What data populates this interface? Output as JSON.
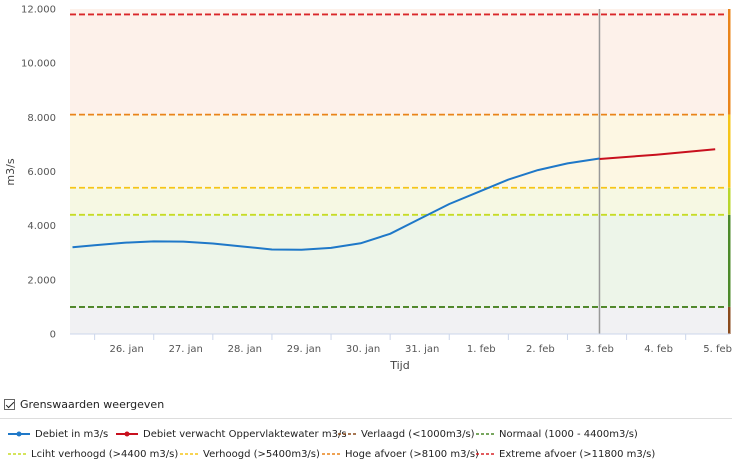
{
  "chart_data": {
    "type": "line",
    "ylabel": "m3/s",
    "xlabel": "Tijd",
    "ylim": [
      0,
      12000
    ],
    "yticks": [
      0,
      2000,
      4000,
      6000,
      8000,
      10000,
      12000
    ],
    "ytick_labels": [
      "0",
      "2.000",
      "4.000",
      "6.000",
      "8.000",
      "10.000",
      "12.000"
    ],
    "xlim": [
      "2025-01-25T14:00",
      "2025-02-05T18:00"
    ],
    "xticks": [
      "2025-01-26",
      "2025-01-27",
      "2025-01-28",
      "2025-01-29",
      "2025-01-30",
      "2025-01-31",
      "2025-02-01",
      "2025-02-02",
      "2025-02-03",
      "2025-02-04",
      "2025-02-05"
    ],
    "xtick_labels": [
      "26. jan",
      "27. jan",
      "28. jan",
      "29. jan",
      "30. jan",
      "31. jan",
      "1. feb",
      "2. feb",
      "3. feb",
      "4. feb",
      "5. feb"
    ],
    "now": "2025-02-03T13:00",
    "series": [
      {
        "name": "Debiet in m3/s",
        "color": "#1f78c8",
        "points": [
          [
            "2025-01-25T15:00",
            3200
          ],
          [
            "2025-01-26T00:00",
            3280
          ],
          [
            "2025-01-26T12:00",
            3370
          ],
          [
            "2025-01-27T00:00",
            3420
          ],
          [
            "2025-01-27T12:00",
            3410
          ],
          [
            "2025-01-28T00:00",
            3340
          ],
          [
            "2025-01-28T12:00",
            3230
          ],
          [
            "2025-01-29T00:00",
            3120
          ],
          [
            "2025-01-29T12:00",
            3110
          ],
          [
            "2025-01-30T00:00",
            3180
          ],
          [
            "2025-01-30T12:00",
            3350
          ],
          [
            "2025-01-31T00:00",
            3700
          ],
          [
            "2025-01-31T12:00",
            4250
          ],
          [
            "2025-02-01T00:00",
            4800
          ],
          [
            "2025-02-01T12:00",
            5250
          ],
          [
            "2025-02-02T00:00",
            5700
          ],
          [
            "2025-02-02T12:00",
            6050
          ],
          [
            "2025-02-03T00:00",
            6300
          ],
          [
            "2025-02-03T13:00",
            6480
          ]
        ]
      },
      {
        "name": "Debiet verwacht Oppervlaktewater m3/s",
        "color": "#c8101e",
        "points": [
          [
            "2025-02-03T13:00",
            6460
          ],
          [
            "2025-02-04T12:00",
            6620
          ],
          [
            "2025-02-05T12:00",
            6820
          ]
        ]
      }
    ],
    "thresholds": [
      {
        "name": "Verlaagd (<1000m3/s)",
        "value": 1000,
        "color": "#8a4a1c"
      },
      {
        "name": "Normaal (1000 - 4400m3/s)",
        "value": 1000,
        "color": "#4c8a2a"
      },
      {
        "name": "Lciht verhoogd (>4400 m3/s)",
        "value": 4400,
        "color": "#c7dc26"
      },
      {
        "name": "Verhoogd (>5400m3/s)",
        "value": 5400,
        "color": "#f5c518"
      },
      {
        "name": "Hoge afvoer (>8100 m3/s)",
        "value": 8100,
        "color": "#e9841a"
      },
      {
        "name": "Extreme afvoer (>11800 m3/s)",
        "value": 11800,
        "color": "#d9272a"
      }
    ],
    "bands": [
      {
        "from": 0,
        "to": 1000,
        "fill": "#f1f1f3",
        "bar": "#8a4a1c"
      },
      {
        "from": 1000,
        "to": 4400,
        "fill": "#edf5e9",
        "bar": "#4c8a2a"
      },
      {
        "from": 4400,
        "to": 5400,
        "fill": "#f6f8e3",
        "bar": "#b8d62a"
      },
      {
        "from": 5400,
        "to": 8100,
        "fill": "#fdf7e3",
        "bar": "#f5c518"
      },
      {
        "from": 8100,
        "to": 12000,
        "fill": "#fdf1ea",
        "bar": "#e9841a"
      }
    ],
    "legend_position": "bottom",
    "grid": false
  },
  "controls": {
    "show_thresholds_label": "Grenswaarden weergeven",
    "show_thresholds_checked": true
  }
}
